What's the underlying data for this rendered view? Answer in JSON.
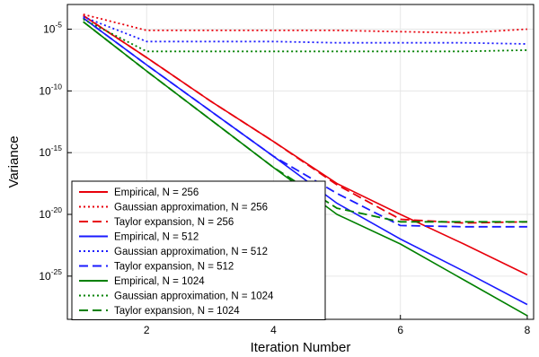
{
  "chart_data": {
    "type": "line",
    "title": "",
    "xlabel": "Iteration Number",
    "ylabel": "Variance",
    "xlim": [
      0.75,
      8.1
    ],
    "ylim_log10": [
      -28.5,
      -3
    ],
    "y_scale": "log",
    "grid": true,
    "legend_position": "bottom-left",
    "x_ticks": [
      2,
      4,
      6,
      8
    ],
    "y_ticks": [
      {
        "exp": -5,
        "label": "10-5"
      },
      {
        "exp": -10,
        "label": "10-10"
      },
      {
        "exp": -15,
        "label": "10-15"
      },
      {
        "exp": -20,
        "label": "10-20"
      },
      {
        "exp": -25,
        "label": "10-25"
      }
    ],
    "series": [
      {
        "name": "Empirical, N = 256",
        "color": "#e8000b",
        "style": "solid",
        "x": [
          1,
          2,
          3,
          4,
          5,
          6,
          7,
          8
        ],
        "log10_y": [
          -3.9,
          -7.3,
          -10.8,
          -14.1,
          -17.5,
          -20.0,
          -22.4,
          -24.9
        ]
      },
      {
        "name": "Gaussian approximation, N = 256",
        "color": "#e8000b",
        "style": "dotted",
        "x": [
          1,
          2,
          3,
          4,
          5,
          6,
          7,
          8
        ],
        "log10_y": [
          -3.8,
          -5.1,
          -5.1,
          -5.1,
          -5.1,
          -5.2,
          -5.3,
          -5.0
        ]
      },
      {
        "name": "Taylor expansion, N = 256",
        "color": "#e8000b",
        "style": "dashed",
        "x": [
          1,
          2,
          3,
          4,
          5,
          6,
          7,
          8
        ],
        "log10_y": [
          -3.9,
          -7.3,
          -10.8,
          -14.1,
          -17.6,
          -20.4,
          -20.7,
          -20.6
        ]
      },
      {
        "name": "Empirical, N = 512",
        "color": "#1a1aff",
        "style": "solid",
        "x": [
          1,
          2,
          3,
          4,
          5,
          6,
          7,
          8
        ],
        "log10_y": [
          -4.1,
          -7.9,
          -11.6,
          -15.3,
          -19.1,
          -22.0,
          -24.6,
          -27.3
        ]
      },
      {
        "name": "Gaussian approximation, N = 512",
        "color": "#1a1aff",
        "style": "dotted",
        "x": [
          1,
          2,
          3,
          4,
          5,
          6,
          7,
          8
        ],
        "log10_y": [
          -4.0,
          -6.0,
          -6.0,
          -6.0,
          -6.1,
          -6.1,
          -6.1,
          -6.2
        ]
      },
      {
        "name": "Taylor expansion, N = 512",
        "color": "#1a1aff",
        "style": "dashed",
        "x": [
          1,
          2,
          3,
          4,
          5,
          6,
          7,
          8
        ],
        "log10_y": [
          -4.1,
          -7.9,
          -11.6,
          -15.3,
          -18.3,
          -20.9,
          -21.0,
          -21.0
        ]
      },
      {
        "name": "Empirical, N = 1024",
        "color": "#008000",
        "style": "solid",
        "x": [
          1,
          2,
          3,
          4,
          5,
          6,
          7,
          8
        ],
        "log10_y": [
          -4.4,
          -8.4,
          -12.3,
          -16.2,
          -20.0,
          -22.4,
          -25.3,
          -28.2
        ]
      },
      {
        "name": "Gaussian approximation, N = 1024",
        "color": "#008000",
        "style": "dotted",
        "x": [
          1,
          2,
          3,
          4,
          5,
          6,
          7,
          8
        ],
        "log10_y": [
          -4.2,
          -6.8,
          -6.8,
          -6.8,
          -6.8,
          -6.8,
          -6.8,
          -6.7
        ]
      },
      {
        "name": "Taylor expansion, N = 1024",
        "color": "#008000",
        "style": "dashed",
        "x": [
          1,
          2,
          3,
          4,
          5,
          6,
          7,
          8
        ],
        "log10_y": [
          -4.4,
          -8.4,
          -12.3,
          -16.2,
          -19.5,
          -20.6,
          -20.6,
          -20.6
        ]
      }
    ]
  }
}
